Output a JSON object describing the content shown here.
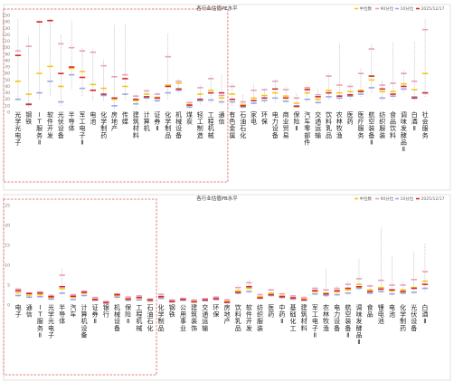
{
  "colors": {
    "median": "#f5c518",
    "p90": "#e8a0c0",
    "p10": "#9aa8e0",
    "current": "#d42b2b",
    "range_line": "#999999",
    "highlight_box": "#e05a5a"
  },
  "legend": {
    "median": "中位数",
    "p90": "90分位",
    "p10": "10分位",
    "current": "2025/12/17"
  },
  "chart_data": [
    {
      "type": "range",
      "title": "各行业估值PE水平",
      "ylim": [
        0,
        150
      ],
      "yticks": [
        0,
        10,
        20,
        30,
        40,
        50,
        60,
        70,
        80,
        90,
        100,
        110,
        120,
        130,
        140,
        150
      ],
      "legend_position": "top-right",
      "grid": false,
      "highlighted_categories": 20,
      "categories": [
        {
          "label": "光学光电子",
          "min": 18,
          "p10": 20,
          "median": 48,
          "p90": 95,
          "max": 145,
          "current": 88
        },
        {
          "label": "钢铁",
          "min": 8,
          "p10": 13,
          "median": 28,
          "p90": 102,
          "max": 118,
          "current": 12
        },
        {
          "label": "IT服务Ⅱ",
          "min": 20,
          "p10": 30,
          "median": 60,
          "p90": 140,
          "max": 143,
          "current": 140
        },
        {
          "label": "软件开发",
          "min": 25,
          "p10": 48,
          "median": 71,
          "p90": 142,
          "max": 145,
          "current": 142
        },
        {
          "label": "光伏设备",
          "min": 10,
          "p10": 16,
          "median": 40,
          "p90": 106,
          "max": 122,
          "current": 60
        },
        {
          "label": "半导体",
          "min": 35,
          "p10": 58,
          "median": 68,
          "p90": 100,
          "max": 142,
          "current": 70
        },
        {
          "label": "军工电子Ⅱ",
          "min": 25,
          "p10": 37,
          "median": 63,
          "p90": 95,
          "max": 100,
          "current": 54
        },
        {
          "label": "电池",
          "min": 18,
          "p10": 34,
          "median": 43,
          "p90": 93,
          "max": 98,
          "current": 34
        },
        {
          "label": "化学制药",
          "min": 18,
          "p10": 26,
          "median": 37,
          "p90": 72,
          "max": 82,
          "current": 28
        },
        {
          "label": "房地产",
          "min": 5,
          "p10": 10,
          "median": 20,
          "p90": 55,
          "max": 135,
          "current": 22
        },
        {
          "label": "传媒",
          "min": 20,
          "p10": 28,
          "median": 40,
          "p90": 58,
          "max": 136,
          "current": 52
        },
        {
          "label": "建筑材料",
          "min": 8,
          "p10": 13,
          "median": 18,
          "p90": 25,
          "max": 30,
          "current": 20
        },
        {
          "label": "计算机",
          "min": 15,
          "p10": 22,
          "median": 28,
          "p90": 33,
          "max": 36,
          "current": 24
        },
        {
          "label": "证券Ⅱ",
          "min": 15,
          "p10": 18,
          "median": 23,
          "p90": 28,
          "max": 32,
          "current": 22
        },
        {
          "label": "化学制品",
          "min": 20,
          "p10": 30,
          "median": 42,
          "p90": 86,
          "max": 122,
          "current": 40
        },
        {
          "label": "机械设备",
          "min": 30,
          "p10": 34,
          "median": 45,
          "p90": 48,
          "max": 52,
          "current": 36
        },
        {
          "label": "煤炭",
          "min": 6,
          "p10": 8,
          "median": 12,
          "p90": 15,
          "max": 18,
          "current": 11
        },
        {
          "label": "轻工制造",
          "min": 12,
          "p10": 18,
          "median": 28,
          "p90": 38,
          "max": 42,
          "current": 20
        },
        {
          "label": "工程机械",
          "min": 14,
          "p10": 19,
          "median": 34,
          "p90": 52,
          "max": 58,
          "current": 30
        },
        {
          "label": "通信",
          "min": 12,
          "p10": 16,
          "median": 22,
          "p90": 26,
          "max": 58,
          "current": 30
        },
        {
          "label": "有色金属",
          "min": 10,
          "p10": 16,
          "median": 28,
          "p90": 40,
          "max": 46,
          "current": 20
        },
        {
          "label": "石油石化",
          "min": 6,
          "p10": 8,
          "median": 12,
          "p90": 16,
          "max": 28,
          "current": 10
        },
        {
          "label": "家电",
          "min": 12,
          "p10": 14,
          "median": 22,
          "p90": 34,
          "max": 45,
          "current": 18
        },
        {
          "label": "环保",
          "min": 15,
          "p10": 18,
          "median": 26,
          "p90": 35,
          "max": 38,
          "current": 22
        },
        {
          "label": "电力设备",
          "min": 16,
          "p10": 22,
          "median": 30,
          "p90": 48,
          "max": 52,
          "current": 36
        },
        {
          "label": "商业贸易",
          "min": 15,
          "p10": 17,
          "median": 25,
          "p90": 35,
          "max": 40,
          "current": 22
        },
        {
          "label": "保险Ⅱ",
          "min": 8,
          "p10": 10,
          "median": 14,
          "p90": 22,
          "max": 30,
          "current": 9
        },
        {
          "label": "汽车零部件",
          "min": 16,
          "p10": 20,
          "median": 30,
          "p90": 38,
          "max": 42,
          "current": 35
        },
        {
          "label": "交通运输",
          "min": 12,
          "p10": 15,
          "median": 20,
          "p90": 27,
          "max": 36,
          "current": 24
        },
        {
          "label": "饮料乳品",
          "min": 20,
          "p10": 24,
          "median": 34,
          "p90": 56,
          "max": 60,
          "current": 30
        },
        {
          "label": "农林牧渔",
          "min": 18,
          "p10": 22,
          "median": 30,
          "p90": 42,
          "max": 108,
          "current": 25
        },
        {
          "label": "医药",
          "min": 20,
          "p10": 25,
          "median": 32,
          "p90": 40,
          "max": 45,
          "current": 27
        },
        {
          "label": "医疗服务",
          "min": 24,
          "p10": 28,
          "median": 34,
          "p90": 60,
          "max": 68,
          "current": 32
        },
        {
          "label": "航空装备Ⅱ",
          "min": 30,
          "p10": 38,
          "median": 50,
          "p90": 98,
          "max": 105,
          "current": 56
        },
        {
          "label": "纺织服装",
          "min": 18,
          "p10": 22,
          "median": 32,
          "p90": 42,
          "max": 50,
          "current": 36
        },
        {
          "label": "食品饮料",
          "min": 20,
          "p10": 25,
          "median": 32,
          "p90": 45,
          "max": 108,
          "current": 28
        },
        {
          "label": "调味发酵品Ⅱ",
          "min": 30,
          "p10": 36,
          "median": 44,
          "p90": 60,
          "max": 65,
          "current": 40
        },
        {
          "label": "白酒Ⅱ",
          "min": 18,
          "p10": 24,
          "median": 35,
          "p90": 48,
          "max": 110,
          "current": 22
        },
        {
          "label": "社会服务",
          "min": 24,
          "p10": 30,
          "median": 60,
          "p90": 128,
          "max": 145,
          "current": 30
        }
      ]
    },
    {
      "type": "range",
      "title": "各行业估值PB水平",
      "ylim": [
        0,
        25
      ],
      "yticks": [
        0,
        5,
        10,
        15,
        20,
        25
      ],
      "legend_position": "top-right",
      "grid": false,
      "highlighted_categories": 13,
      "categories": [
        {
          "label": "电子",
          "min": 2.0,
          "p10": 2.4,
          "median": 3.1,
          "p90": 4.0,
          "max": 4.4,
          "current": 3.6
        },
        {
          "label": "通信",
          "min": 1.6,
          "p10": 2.0,
          "median": 2.5,
          "p90": 3.0,
          "max": 3.4,
          "current": 2.9
        },
        {
          "label": "IT服务Ⅱ",
          "min": 1.8,
          "p10": 2.1,
          "median": 2.6,
          "p90": 3.3,
          "max": 3.6,
          "current": 3.0
        },
        {
          "label": "光学光电子",
          "min": 1.2,
          "p10": 1.5,
          "median": 1.9,
          "p90": 2.4,
          "max": 2.8,
          "current": 2.1
        },
        {
          "label": "半导体",
          "min": 2.6,
          "p10": 3.0,
          "median": 4.1,
          "p90": 7.5,
          "max": 9.2,
          "current": 4.6
        },
        {
          "label": "汽车",
          "min": 1.2,
          "p10": 1.4,
          "median": 2.0,
          "p90": 2.6,
          "max": 2.9,
          "current": 2.2
        },
        {
          "label": "计算机设备",
          "min": 2.0,
          "p10": 2.4,
          "median": 3.0,
          "p90": 3.5,
          "max": 3.8,
          "current": 3.2
        },
        {
          "label": "证券Ⅱ",
          "min": 1.0,
          "p10": 1.2,
          "median": 1.5,
          "p90": 1.9,
          "max": 2.1,
          "current": 1.4
        },
        {
          "label": "银行",
          "min": 0.4,
          "p10": 0.5,
          "median": 0.7,
          "p90": 0.9,
          "max": 1.0,
          "current": 0.6
        },
        {
          "label": "机械设备",
          "min": 1.6,
          "p10": 2.0,
          "median": 2.4,
          "p90": 2.8,
          "max": 3.1,
          "current": 2.6
        },
        {
          "label": "保险Ⅱ",
          "min": 1.0,
          "p10": 1.2,
          "median": 1.6,
          "p90": 2.0,
          "max": 2.2,
          "current": 1.5
        },
        {
          "label": "工程机械",
          "min": 1.0,
          "p10": 1.3,
          "median": 1.8,
          "p90": 2.3,
          "max": 2.6,
          "current": 1.9
        },
        {
          "label": "石油石化",
          "min": 0.8,
          "p10": 1.0,
          "median": 1.2,
          "p90": 1.5,
          "max": 1.7,
          "current": 1.3
        },
        {
          "label": "化学制品",
          "min": 1.4,
          "p10": 1.7,
          "median": 2.2,
          "p90": 2.7,
          "max": 3.0,
          "current": 2.1
        },
        {
          "label": "钢铁",
          "min": 0.6,
          "p10": 0.8,
          "median": 1.0,
          "p90": 1.3,
          "max": 1.5,
          "current": 0.9
        },
        {
          "label": "公用事业",
          "min": 1.0,
          "p10": 1.2,
          "median": 1.5,
          "p90": 1.7,
          "max": 1.9,
          "current": 1.4
        },
        {
          "label": "建筑装饰",
          "min": 0.6,
          "p10": 0.8,
          "median": 1.0,
          "p90": 1.3,
          "max": 1.5,
          "current": 0.8
        },
        {
          "label": "交通运输",
          "min": 0.9,
          "p10": 1.1,
          "median": 1.3,
          "p90": 1.6,
          "max": 1.8,
          "current": 1.3
        },
        {
          "label": "环保",
          "min": 1.2,
          "p10": 1.4,
          "median": 1.7,
          "p90": 2.0,
          "max": 2.3,
          "current": 1.6
        },
        {
          "label": "房地产",
          "min": 0.5,
          "p10": 0.6,
          "median": 0.9,
          "p90": 1.3,
          "max": 1.6,
          "current": 0.7
        },
        {
          "label": "饮料乳品",
          "min": 2.6,
          "p10": 3.0,
          "median": 3.6,
          "p90": 4.4,
          "max": 5.0,
          "current": 3.2
        },
        {
          "label": "软件开发",
          "min": 3.0,
          "p10": 3.4,
          "median": 4.2,
          "p90": 5.6,
          "max": 6.4,
          "current": 4.6
        },
        {
          "label": "纺织服装",
          "min": 1.4,
          "p10": 1.7,
          "median": 2.1,
          "p90": 2.6,
          "max": 2.9,
          "current": 1.8
        },
        {
          "label": "医药",
          "min": 2.0,
          "p10": 2.4,
          "median": 3.0,
          "p90": 3.8,
          "max": 4.2,
          "current": 2.6
        },
        {
          "label": "中药Ⅱ",
          "min": 1.6,
          "p10": 1.9,
          "median": 2.3,
          "p90": 2.8,
          "max": 3.1,
          "current": 2.1
        },
        {
          "label": "基础化工",
          "min": 1.2,
          "p10": 1.5,
          "median": 1.9,
          "p90": 2.3,
          "max": 2.6,
          "current": 1.8
        },
        {
          "label": "建筑材料",
          "min": 1.0,
          "p10": 1.2,
          "median": 1.5,
          "p90": 1.9,
          "max": 2.2,
          "current": 1.3
        },
        {
          "label": "军工电子Ⅱ",
          "min": 2.4,
          "p10": 2.8,
          "median": 3.4,
          "p90": 4.2,
          "max": 4.8,
          "current": 3.6
        },
        {
          "label": "农林牧渔",
          "min": 2.0,
          "p10": 2.4,
          "median": 3.0,
          "p90": 3.8,
          "max": 9.3,
          "current": 2.8
        },
        {
          "label": "电力设备",
          "min": 2.2,
          "p10": 2.6,
          "median": 3.3,
          "p90": 4.2,
          "max": 5.0,
          "current": 3.6
        },
        {
          "label": "航空装备Ⅱ",
          "min": 2.6,
          "p10": 3.0,
          "median": 3.8,
          "p90": 5.2,
          "max": 6.0,
          "current": 4.2
        },
        {
          "label": "调味发酵品Ⅱ",
          "min": 3.6,
          "p10": 4.2,
          "median": 5.2,
          "p90": 6.6,
          "max": 11.5,
          "current": 4.6
        },
        {
          "label": "食品",
          "min": 2.6,
          "p10": 3.0,
          "median": 3.8,
          "p90": 4.8,
          "max": 5.4,
          "current": 3.4
        },
        {
          "label": "锂电池",
          "min": 2.8,
          "p10": 3.4,
          "median": 4.4,
          "p90": 6.2,
          "max": 19.5,
          "current": 4.0
        },
        {
          "label": "电池",
          "min": 2.4,
          "p10": 2.8,
          "median": 3.6,
          "p90": 5.0,
          "max": 12.2,
          "current": 3.8
        },
        {
          "label": "化学制药",
          "min": 2.6,
          "p10": 3.0,
          "median": 3.8,
          "p90": 5.0,
          "max": 5.6,
          "current": 3.4
        },
        {
          "label": "光伏设备",
          "min": 2.8,
          "p10": 3.2,
          "median": 4.4,
          "p90": 6.4,
          "max": 13.4,
          "current": 4.2
        },
        {
          "label": "白酒Ⅱ",
          "min": 3.4,
          "p10": 4.2,
          "median": 6.0,
          "p90": 8.4,
          "max": 15.5,
          "current": 5.2
        }
      ]
    }
  ]
}
